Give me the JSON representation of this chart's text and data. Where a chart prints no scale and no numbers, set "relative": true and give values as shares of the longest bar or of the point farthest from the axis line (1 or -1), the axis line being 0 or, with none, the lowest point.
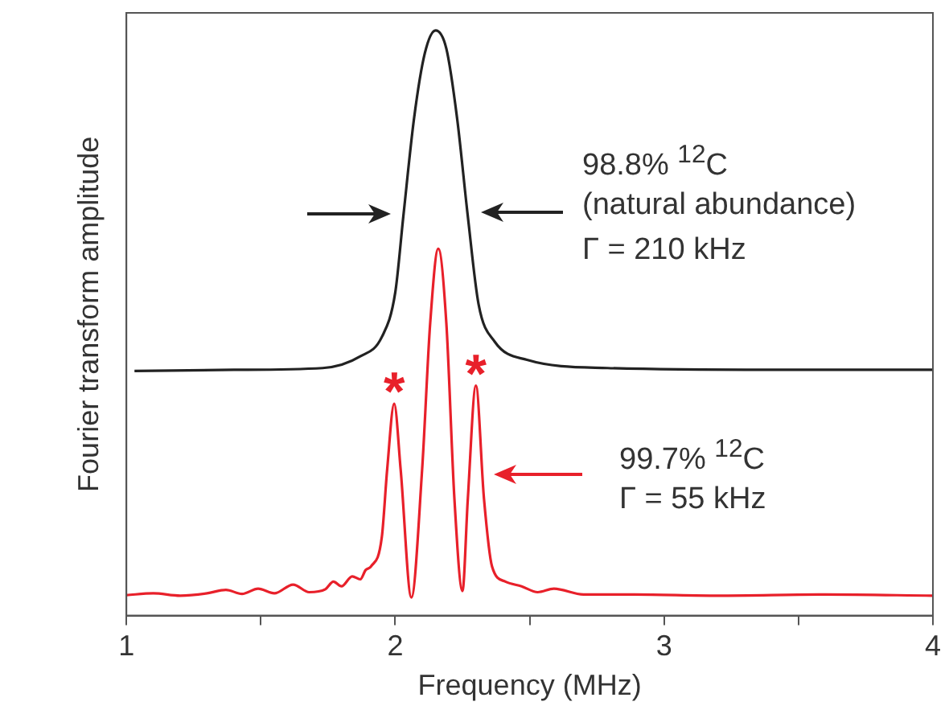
{
  "chart_data": {
    "type": "line",
    "xlabel": "Frequency (MHz)",
    "ylabel": "Fourier transform amplitude",
    "relative": true,
    "xlim": [
      1,
      4
    ],
    "xticks": [
      1,
      {
        "value": 1.5,
        "label": null
      },
      2,
      {
        "value": 2.5,
        "label": null
      },
      3,
      {
        "value": 3.5,
        "label": null
      },
      4
    ],
    "grid": false,
    "legend": false,
    "marker": "none",
    "line_style": "solid",
    "series": [
      {
        "color": "#222222",
        "x": [
          1.03,
          1.4,
          1.73,
          1.87,
          1.95,
          2.0,
          2.03,
          2.07,
          2.11,
          2.15,
          2.19,
          2.23,
          2.27,
          2.31,
          2.37,
          2.49,
          2.79,
          3.4,
          3.95,
          4.0
        ],
        "values": [
          0.418,
          0.42,
          0.423,
          0.443,
          0.476,
          0.552,
          0.682,
          0.85,
          0.961,
          1.0,
          0.969,
          0.85,
          0.682,
          0.532,
          0.468,
          0.437,
          0.423,
          0.42,
          0.42,
          0.42
        ]
      },
      {
        "color": "#e8202a",
        "x": [
          1.0,
          1.1,
          1.2,
          1.3,
          1.37,
          1.43,
          1.49,
          1.55,
          1.62,
          1.68,
          1.74,
          1.77,
          1.8,
          1.84,
          1.87,
          1.89,
          1.91,
          1.95,
          1.97,
          1.996,
          2.02,
          2.06,
          2.1,
          2.13,
          2.16,
          2.19,
          2.22,
          2.25,
          2.27,
          2.3,
          2.33,
          2.36,
          2.41,
          2.47,
          2.53,
          2.59,
          2.7,
          2.89,
          3.2,
          3.6,
          4.0
        ],
        "values": [
          0.035,
          0.038,
          0.034,
          0.038,
          0.044,
          0.037,
          0.046,
          0.038,
          0.053,
          0.04,
          0.045,
          0.058,
          0.05,
          0.067,
          0.062,
          0.078,
          0.084,
          0.134,
          0.25,
          0.362,
          0.25,
          0.031,
          0.25,
          0.5,
          0.627,
          0.5,
          0.2,
          0.042,
          0.2,
          0.393,
          0.2,
          0.084,
          0.058,
          0.05,
          0.04,
          0.046,
          0.036,
          0.036,
          0.034,
          0.036,
          0.034
        ]
      }
    ],
    "annotations": [
      "98.8% $^{12}$C",
      "(natural abundance)",
      "Γ = 210 kHz",
      "99.7% $^{12}$C",
      "Γ = 55 kHz",
      {
        "text": "*",
        "x": 1.996,
        "y": 0.362
      },
      {
        "text": "*",
        "x": 2.3,
        "y": 0.393
      }
    ]
  }
}
